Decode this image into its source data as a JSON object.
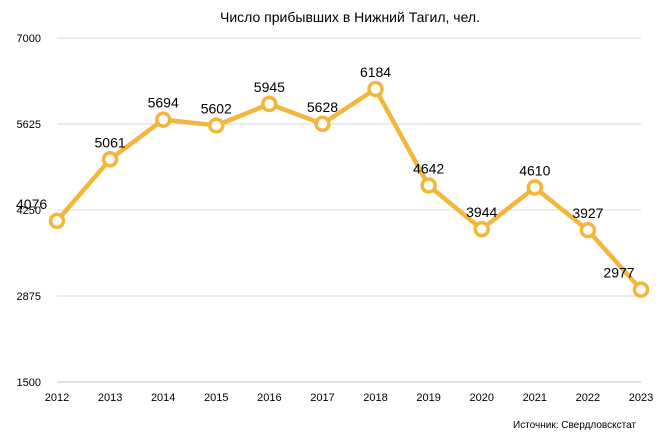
{
  "chart_data": {
    "type": "line",
    "title": "Число прибывших в Нижний Тагил, чел.",
    "source": "Источник: Свердловскстат",
    "categories": [
      "2012",
      "2013",
      "2014",
      "2015",
      "2016",
      "2017",
      "2018",
      "2019",
      "2020",
      "2021",
      "2022",
      "2023"
    ],
    "series": [
      {
        "values": [
          4076,
          5061,
          5694,
          5602,
          5945,
          5628,
          6184,
          4642,
          3944,
          4610,
          3927,
          2977
        ]
      }
    ],
    "ylim": [
      1500,
      7000
    ],
    "yticks": [
      1500,
      2875,
      4250,
      5625,
      7000
    ],
    "grid": true,
    "line_color": "#F4B63A",
    "grid_color": "#D9D9D9",
    "axis_color": "#BFBFBF",
    "text_color": "#000000"
  }
}
